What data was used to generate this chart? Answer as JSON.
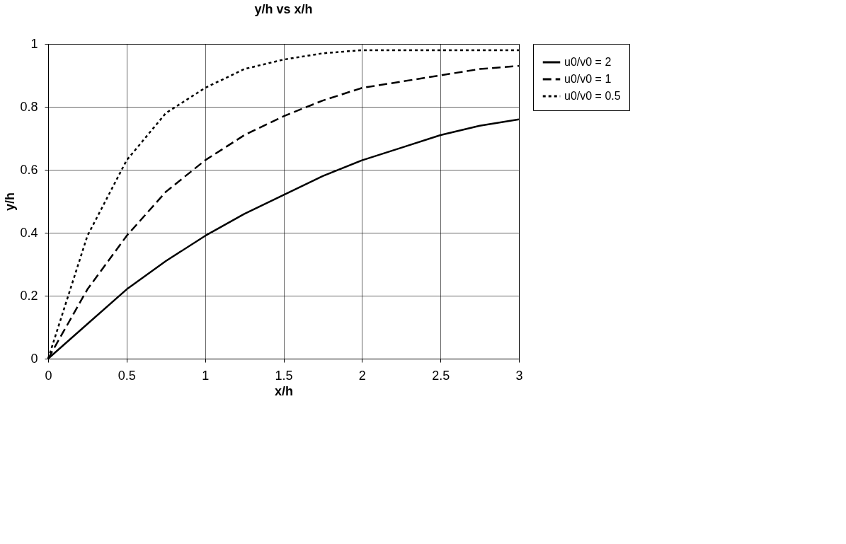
{
  "chart_data": {
    "type": "line",
    "title": "y/h vs x/h",
    "xlabel": "x/h",
    "ylabel": "y/h",
    "x": [
      0,
      0.25,
      0.5,
      0.75,
      1,
      1.25,
      1.5,
      1.75,
      2,
      2.25,
      2.5,
      2.75,
      3
    ],
    "series": [
      {
        "name": "u0/v0 = 2",
        "color": "#000000",
        "line_style": "solid",
        "values": [
          0,
          0.11,
          0.22,
          0.31,
          0.39,
          0.46,
          0.52,
          0.58,
          0.63,
          0.67,
          0.71,
          0.74,
          0.76
        ]
      },
      {
        "name": "u0/v0 = 1",
        "color": "#000000",
        "line_style": "dashed",
        "values": [
          0,
          0.22,
          0.39,
          0.53,
          0.63,
          0.71,
          0.77,
          0.82,
          0.86,
          0.88,
          0.9,
          0.92,
          0.93
        ]
      },
      {
        "name": "u0/v0 = 0.5",
        "color": "#000000",
        "line_style": "dotted",
        "values": [
          0,
          0.39,
          0.63,
          0.78,
          0.86,
          0.92,
          0.95,
          0.97,
          0.98,
          0.98,
          0.98,
          0.98,
          0.98
        ]
      }
    ],
    "xlim": [
      0,
      3
    ],
    "xticks": [
      0,
      0.5,
      1,
      1.5,
      2,
      2.5,
      3
    ],
    "ylim": [
      0,
      1
    ],
    "yticks": [
      0,
      0.2,
      0.4,
      0.6,
      0.8,
      1
    ],
    "grid": true,
    "legend": "right",
    "marker": "none"
  }
}
